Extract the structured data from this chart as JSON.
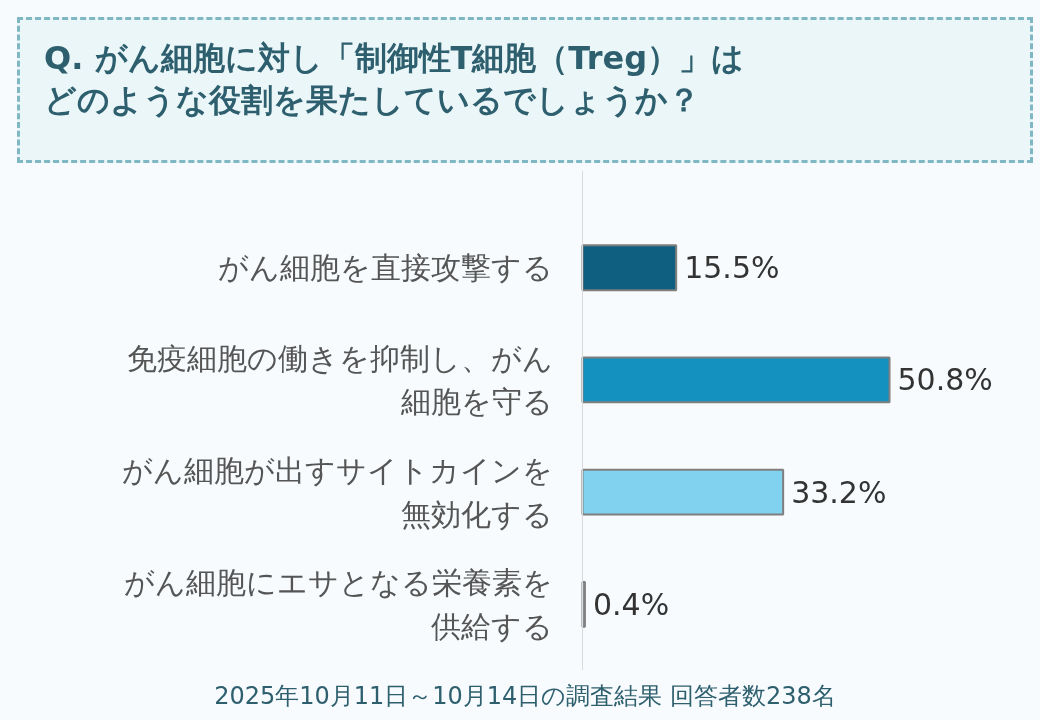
{
  "chart_data": {
    "type": "bar",
    "orientation": "horizontal",
    "title": "Q. がん細胞に対し「制御性T細胞（Treg）」はどのような役割を果たしているでしょうか？",
    "categories": [
      "がん細胞を直接攻撃する",
      "免疫細胞の働きを抑制し、がん細胞を守る",
      "がん細胞が出すサイトカインを無効化する",
      "がん細胞にエサとなる栄養素を供給する"
    ],
    "values": [
      15.5,
      50.8,
      33.2,
      0.4
    ],
    "colors": [
      "#0f5f80",
      "#1591c0",
      "#80d2ef",
      "#9aa0a8"
    ],
    "value_labels": [
      "15.5%",
      "50.8%",
      "33.2%",
      "0.4%"
    ],
    "grid": false,
    "annotations": [
      "2025年10月11日～10月14日の調査結果  回答者数238名"
    ]
  }
}
